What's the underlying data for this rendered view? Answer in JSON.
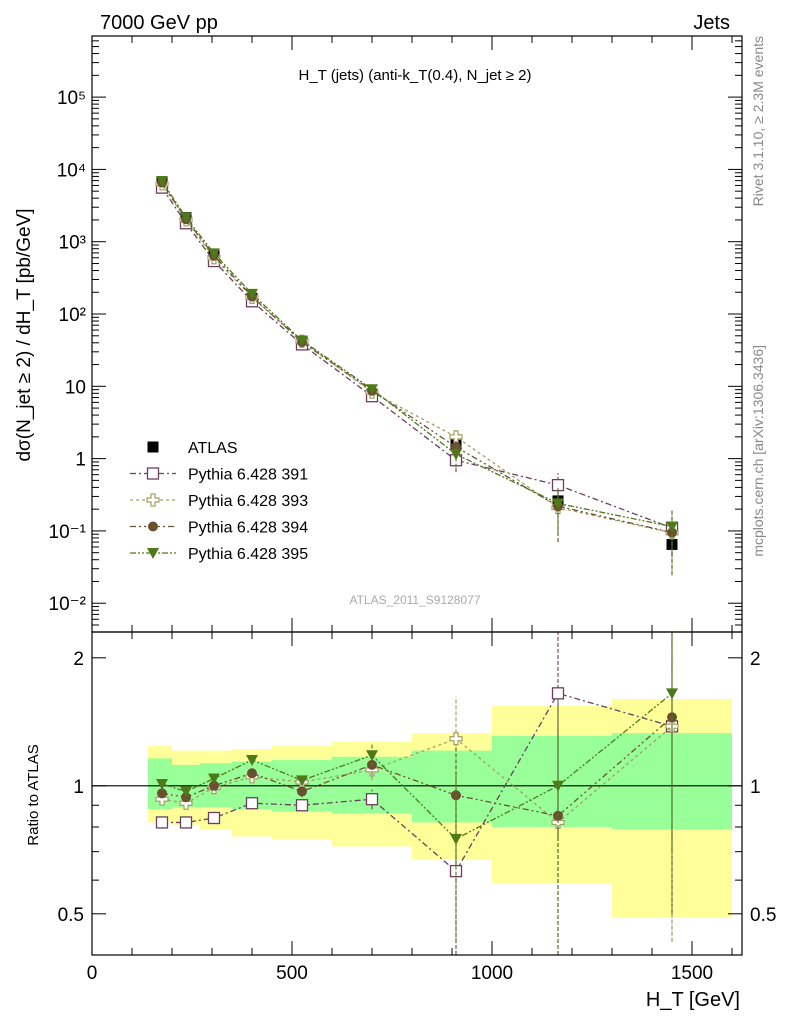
{
  "header": {
    "left": "7000 GeV pp",
    "right": "Jets"
  },
  "side_labels": {
    "rivet": "Rivet 3.1.10, ≥ 2.3M events",
    "mcplots": "mcplots.cern.ch [arXiv:1306.3436]"
  },
  "watermark": "ATLAS_2011_S9128077",
  "colors": {
    "atlas": "#000000",
    "p391": "#6b3f5e",
    "p393": "#a0a060",
    "p394": "#6b5030",
    "p395": "#4e7a1a",
    "band_inner": "#99ff99",
    "band_outer": "#ffff99"
  },
  "chart_data": [
    {
      "type": "scatter",
      "title": "H_T (jets) (anti-k_T(0.4), N_jet ≥ 2)",
      "ylabel": "dσ(N_jet ≥ 2) / dH_T [pb/GeV]",
      "yscale": "log",
      "ylim": [
        0.004,
        700000
      ],
      "xlim": [
        0,
        1625
      ],
      "legend_position": "lower-left",
      "x": [
        175,
        235,
        305,
        400,
        525,
        700,
        910,
        1165,
        1450
      ],
      "series": [
        {
          "name": "ATLAS",
          "marker": "filled-square",
          "values": [
            6800,
            2150,
            640,
            165,
            42,
            7.8,
            1.55,
            0.26,
            0.065
          ],
          "err_low": [
            500,
            150,
            45,
            12,
            3,
            0.6,
            0.2,
            0.06,
            0.02
          ],
          "err_high": [
            500,
            150,
            45,
            12,
            3,
            0.6,
            0.2,
            0.06,
            0.02
          ]
        },
        {
          "name": "Pythia 6.428 391",
          "marker": "open-square",
          "values": [
            5600,
            1800,
            540,
            150,
            38,
            7.3,
            0.95,
            0.43,
            0.11
          ],
          "err_low": [
            150,
            50,
            15,
            4,
            1.5,
            0.5,
            0.3,
            0.2,
            0.08
          ],
          "err_high": [
            150,
            50,
            15,
            4,
            1.5,
            0.5,
            0.3,
            0.2,
            0.08
          ]
        },
        {
          "name": "Pythia 6.428 393",
          "marker": "open-cross",
          "values": [
            6300,
            2000,
            600,
            170,
            42,
            8.3,
            2.0,
            0.21,
            0.094
          ],
          "err_low": [
            150,
            50,
            15,
            4,
            1.5,
            0.5,
            0.5,
            0.14,
            0.07
          ],
          "err_high": [
            150,
            50,
            15,
            4,
            1.5,
            0.5,
            0.5,
            0.14,
            0.07
          ]
        },
        {
          "name": "Pythia 6.428 394",
          "marker": "filled-circle",
          "values": [
            6600,
            2050,
            640,
            175,
            41,
            8.7,
            1.45,
            0.22,
            0.095
          ],
          "err_low": [
            150,
            50,
            15,
            4,
            1.5,
            0.5,
            0.4,
            0.15,
            0.07
          ],
          "err_high": [
            150,
            50,
            15,
            4,
            1.5,
            0.5,
            0.4,
            0.15,
            0.07
          ]
        },
        {
          "name": "Pythia 6.428 395",
          "marker": "filled-triangle-down",
          "values": [
            6900,
            2150,
            690,
            190,
            43,
            9.1,
            1.15,
            0.24,
            0.115
          ],
          "err_low": [
            150,
            50,
            15,
            4,
            1.5,
            0.5,
            0.4,
            0.15,
            0.09
          ],
          "err_high": [
            150,
            50,
            15,
            4,
            1.5,
            0.5,
            0.4,
            0.15,
            0.09
          ]
        }
      ]
    },
    {
      "type": "scatter",
      "ylabel": "Ratio to ATLAS",
      "xlabel": "H_T [GeV]",
      "yscale": "log",
      "ylim": [
        0.4,
        2.3
      ],
      "xlim": [
        0,
        1625
      ],
      "ytick_labels": [
        "0.5",
        "1",
        "2"
      ],
      "xtick_labels": [
        "0",
        "500",
        "1000",
        "1500"
      ],
      "reference_line": 1,
      "x": [
        175,
        235,
        305,
        400,
        525,
        700,
        910,
        1165,
        1450
      ],
      "bands": [
        {
          "x0": 140,
          "x1": 200,
          "inner": [
            0.88,
            1.16
          ],
          "outer": [
            0.82,
            1.24
          ]
        },
        {
          "x0": 200,
          "x1": 270,
          "inner": [
            0.89,
            1.12
          ],
          "outer": [
            0.81,
            1.21
          ]
        },
        {
          "x0": 270,
          "x1": 350,
          "inner": [
            0.89,
            1.13
          ],
          "outer": [
            0.79,
            1.21
          ]
        },
        {
          "x0": 350,
          "x1": 450,
          "inner": [
            0.88,
            1.14
          ],
          "outer": [
            0.76,
            1.22
          ]
        },
        {
          "x0": 450,
          "x1": 600,
          "inner": [
            0.87,
            1.15
          ],
          "outer": [
            0.75,
            1.24
          ]
        },
        {
          "x0": 600,
          "x1": 800,
          "inner": [
            0.86,
            1.17
          ],
          "outer": [
            0.72,
            1.27
          ]
        },
        {
          "x0": 800,
          "x1": 1000,
          "inner": [
            0.82,
            1.21
          ],
          "outer": [
            0.67,
            1.33
          ]
        },
        {
          "x0": 1000,
          "x1": 1300,
          "inner": [
            0.8,
            1.31
          ],
          "outer": [
            0.59,
            1.54
          ]
        },
        {
          "x0": 1300,
          "x1": 1600,
          "inner": [
            0.79,
            1.33
          ],
          "outer": [
            0.49,
            1.6
          ]
        }
      ],
      "series": [
        {
          "name": "Pythia 6.428 391",
          "marker": "open-square",
          "values": [
            0.82,
            0.82,
            0.84,
            0.91,
            0.9,
            0.93,
            0.63,
            1.65,
            1.38
          ],
          "err": [
            0.01,
            0.01,
            0.01,
            0.02,
            0.03,
            0.05,
            0.3,
            0.9,
            0.95
          ]
        },
        {
          "name": "Pythia 6.428 393",
          "marker": "open-cross",
          "values": [
            0.93,
            0.91,
            0.99,
            1.05,
            1.02,
            1.09,
            1.29,
            0.82,
            1.38
          ],
          "err": [
            0.01,
            0.01,
            0.01,
            0.02,
            0.03,
            0.06,
            0.33,
            0.55,
            0.95
          ]
        },
        {
          "name": "Pythia 6.428 394",
          "marker": "filled-circle",
          "values": [
            0.96,
            0.94,
            1.0,
            1.07,
            0.97,
            1.12,
            0.95,
            0.85,
            1.45
          ],
          "err": [
            0.01,
            0.01,
            0.01,
            0.02,
            0.03,
            0.06,
            0.3,
            0.55,
            0.95
          ]
        },
        {
          "name": "Pythia 6.428 395",
          "marker": "filled-triangle-down",
          "values": [
            1.01,
            0.97,
            1.04,
            1.15,
            1.03,
            1.18,
            0.75,
            1.0,
            1.65
          ],
          "err": [
            0.01,
            0.01,
            0.01,
            0.02,
            0.03,
            0.07,
            0.32,
            0.6,
            0.95
          ]
        }
      ]
    }
  ]
}
